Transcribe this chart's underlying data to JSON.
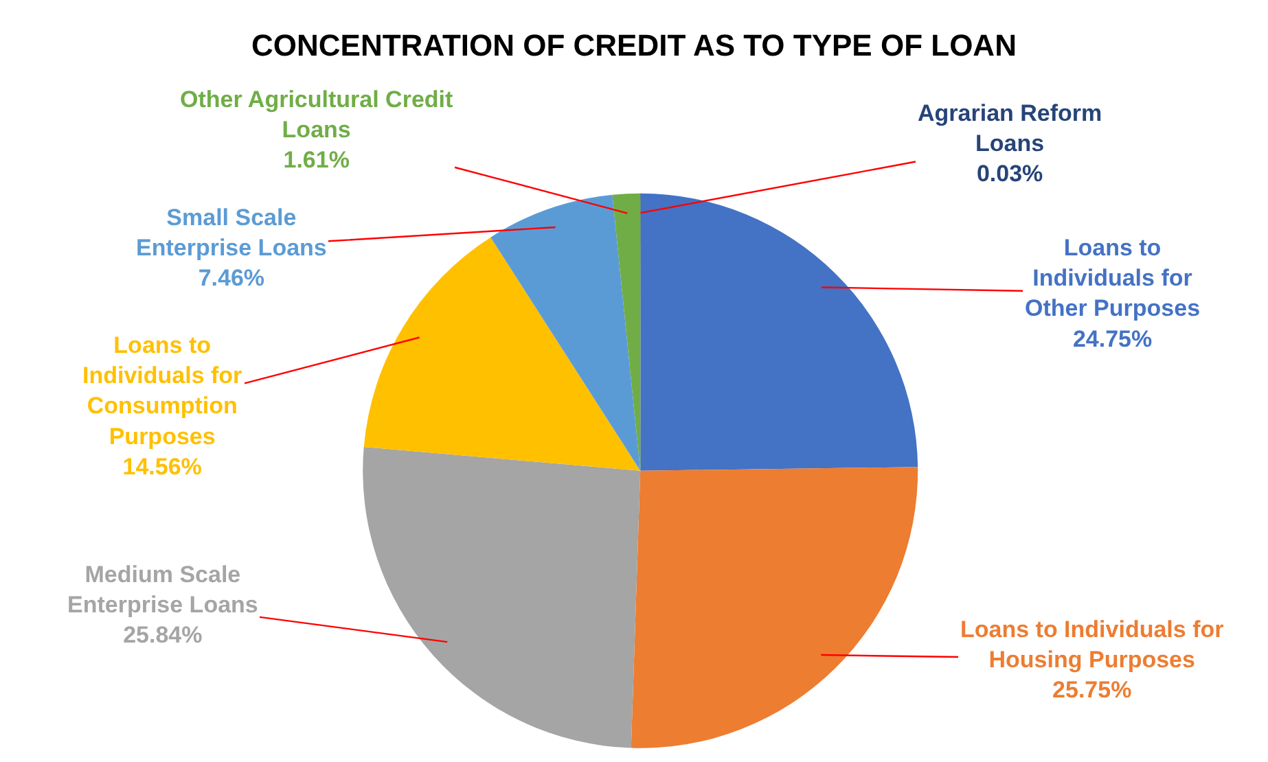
{
  "chart_data": {
    "type": "pie",
    "title": "CONCENTRATION OF CREDIT AS TO TYPE OF LOAN",
    "categories": [
      "Agrarian Reform Loans",
      "Loans to Individuals for Other Purposes",
      "Loans to Individuals for Housing Purposes",
      "Medium Scale Enterprise Loans",
      "Loans to Individuals for Consumption Purposes",
      "Small Scale Enterprise Loans",
      "Other Agricultural Credit Loans"
    ],
    "values": [
      0.03,
      24.75,
      25.75,
      25.84,
      14.56,
      7.46,
      1.61
    ],
    "value_labels": [
      "0.03%",
      "24.75%",
      "25.75%",
      "25.84%",
      "14.56%",
      "7.46%",
      "1.61%"
    ],
    "colors": [
      "#264478",
      "#4472c4",
      "#ed7d31",
      "#a5a5a5",
      "#ffc000",
      "#5b9bd5",
      "#70ad47"
    ],
    "legend": false
  }
}
